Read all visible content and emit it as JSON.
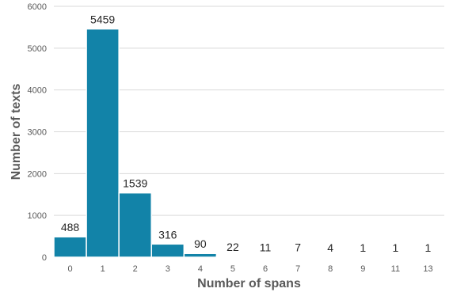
{
  "chart_data": {
    "type": "bar",
    "xlabel": "Number of spans",
    "ylabel": "Number of texts",
    "categories": [
      "0",
      "1",
      "2",
      "3",
      "4",
      "5",
      "6",
      "7",
      "8",
      "9",
      "11",
      "13"
    ],
    "values": [
      488,
      5459,
      1539,
      316,
      90,
      22,
      11,
      7,
      4,
      1,
      1,
      1
    ],
    "data_labels": [
      "488",
      "5459",
      "1539",
      "316",
      "90",
      "22",
      "11",
      "7",
      "4",
      "1",
      "1",
      "1"
    ],
    "ylim": [
      0,
      6000
    ],
    "yticks": [
      0,
      1000,
      2000,
      3000,
      4000,
      5000,
      6000
    ],
    "ytick_labels": [
      "0",
      "1000",
      "2000",
      "3000",
      "4000",
      "5000",
      "6000"
    ],
    "grid": true,
    "legend": "none",
    "colors": {
      "bar": "#1283a8",
      "bar_edge": "#ffffff",
      "grid": "#d9d9d9",
      "axis": "#bfbfbf"
    }
  }
}
